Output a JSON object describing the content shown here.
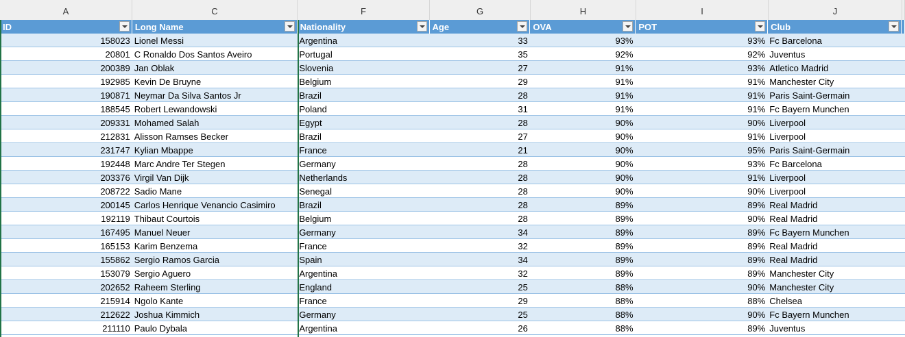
{
  "column_letters": [
    "A",
    "C",
    "F",
    "G",
    "H",
    "I",
    "J"
  ],
  "headers": [
    "ID",
    "Long Name",
    "Nationality",
    "Age",
    "OVA",
    "POT",
    "Club"
  ],
  "rows": [
    {
      "id": "158023",
      "name": "Lionel Messi",
      "nationality": "Argentina",
      "age": "33",
      "ova": "93%",
      "pot": "93%",
      "club": "Fc Barcelona"
    },
    {
      "id": "20801",
      "name": "C Ronaldo Dos Santos Aveiro",
      "nationality": "Portugal",
      "age": "35",
      "ova": "92%",
      "pot": "92%",
      "club": "Juventus"
    },
    {
      "id": "200389",
      "name": "Jan Oblak",
      "nationality": "Slovenia",
      "age": "27",
      "ova": "91%",
      "pot": "93%",
      "club": "Atletico Madrid"
    },
    {
      "id": "192985",
      "name": "Kevin De Bruyne",
      "nationality": "Belgium",
      "age": "29",
      "ova": "91%",
      "pot": "91%",
      "club": "Manchester City"
    },
    {
      "id": "190871",
      "name": "Neymar Da Silva Santos Jr",
      "nationality": "Brazil",
      "age": "28",
      "ova": "91%",
      "pot": "91%",
      "club": "Paris Saint-Germain"
    },
    {
      "id": "188545",
      "name": "Robert Lewandowski",
      "nationality": "Poland",
      "age": "31",
      "ova": "91%",
      "pot": "91%",
      "club": "Fc Bayern Munchen"
    },
    {
      "id": "209331",
      "name": "Mohamed Salah",
      "nationality": "Egypt",
      "age": "28",
      "ova": "90%",
      "pot": "90%",
      "club": "Liverpool"
    },
    {
      "id": "212831",
      "name": "Alisson Ramses Becker",
      "nationality": "Brazil",
      "age": "27",
      "ova": "90%",
      "pot": "91%",
      "club": "Liverpool"
    },
    {
      "id": "231747",
      "name": "Kylian Mbappe",
      "nationality": "France",
      "age": "21",
      "ova": "90%",
      "pot": "95%",
      "club": "Paris Saint-Germain"
    },
    {
      "id": "192448",
      "name": "Marc Andre Ter Stegen",
      "nationality": "Germany",
      "age": "28",
      "ova": "90%",
      "pot": "93%",
      "club": "Fc Barcelona"
    },
    {
      "id": "203376",
      "name": "Virgil Van Dijk",
      "nationality": "Netherlands",
      "age": "28",
      "ova": "90%",
      "pot": "91%",
      "club": "Liverpool"
    },
    {
      "id": "208722",
      "name": "Sadio Mane",
      "nationality": "Senegal",
      "age": "28",
      "ova": "90%",
      "pot": "90%",
      "club": "Liverpool"
    },
    {
      "id": "200145",
      "name": "Carlos Henrique Venancio Casimiro",
      "nationality": "Brazil",
      "age": "28",
      "ova": "89%",
      "pot": "89%",
      "club": "Real Madrid"
    },
    {
      "id": "192119",
      "name": "Thibaut Courtois",
      "nationality": "Belgium",
      "age": "28",
      "ova": "89%",
      "pot": "90%",
      "club": "Real Madrid"
    },
    {
      "id": "167495",
      "name": "Manuel Neuer",
      "nationality": "Germany",
      "age": "34",
      "ova": "89%",
      "pot": "89%",
      "club": "Fc Bayern Munchen"
    },
    {
      "id": "165153",
      "name": "Karim Benzema",
      "nationality": "France",
      "age": "32",
      "ova": "89%",
      "pot": "89%",
      "club": "Real Madrid"
    },
    {
      "id": "155862",
      "name": "Sergio Ramos Garcia",
      "nationality": "Spain",
      "age": "34",
      "ova": "89%",
      "pot": "89%",
      "club": "Real Madrid"
    },
    {
      "id": "153079",
      "name": "Sergio Aguero",
      "nationality": "Argentina",
      "age": "32",
      "ova": "89%",
      "pot": "89%",
      "club": "Manchester City"
    },
    {
      "id": "202652",
      "name": "Raheem Sterling",
      "nationality": "England",
      "age": "25",
      "ova": "88%",
      "pot": "90%",
      "club": "Manchester City"
    },
    {
      "id": "215914",
      "name": "Ngolo Kante",
      "nationality": "France",
      "age": "29",
      "ova": "88%",
      "pot": "88%",
      "club": "Chelsea"
    },
    {
      "id": "212622",
      "name": "Joshua Kimmich",
      "nationality": "Germany",
      "age": "25",
      "ova": "88%",
      "pot": "90%",
      "club": "Fc Bayern Munchen"
    },
    {
      "id": "211110",
      "name": "Paulo Dybala",
      "nationality": "Argentina",
      "age": "26",
      "ova": "88%",
      "pot": "89%",
      "club": "Juventus"
    }
  ],
  "colors": {
    "header_fill": "#5b9bd5",
    "band_fill": "#ddebf7",
    "freeze_line": "#217346"
  }
}
